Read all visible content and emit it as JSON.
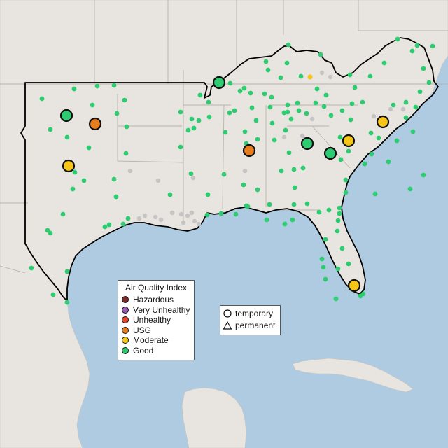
{
  "legend": {
    "title": "Air Quality Index",
    "levels": [
      {
        "label": "Hazardous",
        "color": "#7e2a2a"
      },
      {
        "label": "Very Unhealthy",
        "color": "#9b59b6"
      },
      {
        "label": "Unhealthy",
        "color": "#e8462d"
      },
      {
        "label": "USG",
        "color": "#e87d1e"
      },
      {
        "label": "Moderate",
        "color": "#f5c518"
      },
      {
        "label": "Good",
        "color": "#2ecc71"
      }
    ]
  },
  "shape_legend": {
    "temporary": "temporary",
    "permanent": "permanent"
  },
  "colors": {
    "water": "#aecbe2",
    "land": "#e8e5e0",
    "state_border": "#b8b2aa",
    "region_border": "#000000",
    "no_data": "#c4c4c4"
  },
  "monitors": {
    "good": "many",
    "large_sites": [
      {
        "level": "Good",
        "shape": "temporary"
      },
      {
        "level": "USG",
        "shape": "temporary"
      },
      {
        "level": "Moderate",
        "shape": "temporary"
      },
      {
        "level": "Good",
        "shape": "temporary"
      },
      {
        "level": "USG",
        "shape": "temporary"
      },
      {
        "level": "Good",
        "shape": "temporary"
      },
      {
        "level": "Good",
        "shape": "temporary"
      },
      {
        "level": "Moderate",
        "shape": "temporary"
      },
      {
        "level": "Moderate",
        "shape": "temporary"
      },
      {
        "level": "Moderate",
        "shape": "temporary"
      }
    ]
  }
}
